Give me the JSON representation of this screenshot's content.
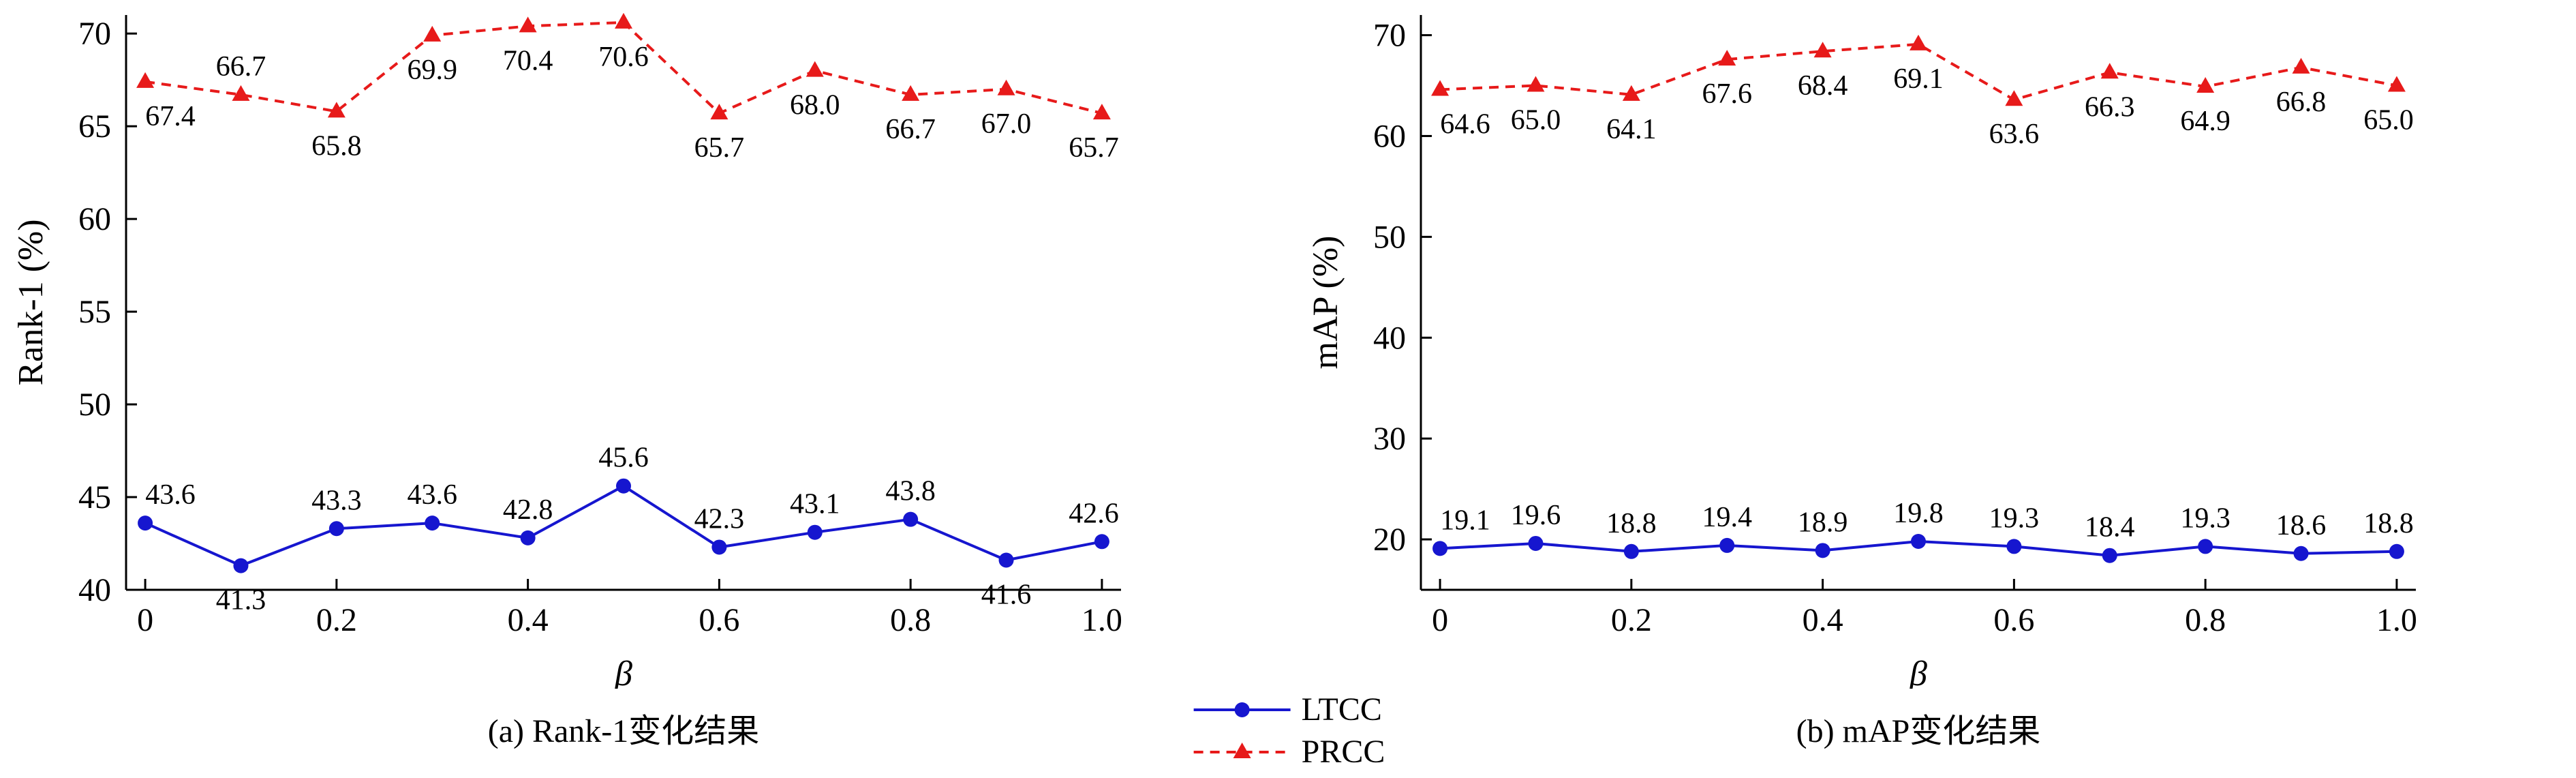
{
  "legend": {
    "position": "bottom-center",
    "items": [
      {
        "label": "LTCC",
        "color": "#1616cf",
        "marker": "circle",
        "line": "solid"
      },
      {
        "label": "PRCC",
        "color": "#e71a1a",
        "marker": "triangle",
        "line": "dashed"
      }
    ]
  },
  "chart_data": [
    {
      "type": "line",
      "caption": "(a) Rank-1变化结果",
      "xlabel": "β",
      "ylabel": "Rank-1 (%)",
      "x": [
        0,
        0.1,
        0.2,
        0.3,
        0.4,
        0.5,
        0.6,
        0.7,
        0.8,
        0.9,
        1.0
      ],
      "xlim": [
        -0.02,
        1.02
      ],
      "ylim": [
        40,
        71
      ],
      "xticks": [
        0,
        0.2,
        0.4,
        0.6,
        0.8,
        1.0
      ],
      "xtick_labels": [
        "0",
        "0.2",
        "0.4",
        "0.6",
        "0.8",
        "1.0"
      ],
      "yticks": [
        40,
        45,
        50,
        55,
        60,
        65,
        70
      ],
      "grid": false,
      "series": [
        {
          "name": "LTCC",
          "color": "#1616cf",
          "marker": "circle",
          "line": "solid",
          "values": [
            43.6,
            41.3,
            43.3,
            43.6,
            42.8,
            45.6,
            42.3,
            43.1,
            43.8,
            41.6,
            42.6
          ],
          "label_side": [
            "above",
            "below",
            "above",
            "above",
            "above",
            "above",
            "above",
            "above",
            "above",
            "below",
            "above"
          ]
        },
        {
          "name": "PRCC",
          "color": "#e71a1a",
          "marker": "triangle",
          "line": "dashed",
          "values": [
            67.4,
            66.7,
            65.8,
            69.9,
            70.4,
            70.6,
            65.7,
            68.0,
            66.7,
            67.0,
            65.7
          ],
          "label_side": [
            "below",
            "above",
            "below",
            "below",
            "below",
            "below",
            "below",
            "below",
            "below",
            "below",
            "below"
          ]
        }
      ]
    },
    {
      "type": "line",
      "caption": "(b) mAP变化结果",
      "xlabel": "β",
      "ylabel": "mAP (%)",
      "x": [
        0,
        0.1,
        0.2,
        0.3,
        0.4,
        0.5,
        0.6,
        0.7,
        0.8,
        0.9,
        1.0
      ],
      "xlim": [
        -0.02,
        1.02
      ],
      "ylim": [
        15,
        72
      ],
      "xticks": [
        0,
        0.2,
        0.4,
        0.6,
        0.8,
        1.0
      ],
      "xtick_labels": [
        "0",
        "0.2",
        "0.4",
        "0.6",
        "0.8",
        "1.0"
      ],
      "yticks": [
        20,
        30,
        40,
        50,
        60,
        70
      ],
      "grid": false,
      "series": [
        {
          "name": "LTCC",
          "color": "#1616cf",
          "marker": "circle",
          "line": "solid",
          "values": [
            19.1,
            19.6,
            18.8,
            19.4,
            18.9,
            19.8,
            19.3,
            18.4,
            19.3,
            18.6,
            18.8
          ],
          "label_side": [
            "above",
            "above",
            "above",
            "above",
            "above",
            "above",
            "above",
            "above",
            "above",
            "above",
            "above"
          ]
        },
        {
          "name": "PRCC",
          "color": "#e71a1a",
          "marker": "triangle",
          "line": "dashed",
          "values": [
            64.6,
            65.0,
            64.1,
            67.6,
            68.4,
            69.1,
            63.6,
            66.3,
            64.9,
            66.8,
            65.0
          ],
          "label_side": [
            "below",
            "below",
            "below",
            "below",
            "below",
            "below",
            "below",
            "below",
            "below",
            "below",
            "below"
          ]
        }
      ]
    }
  ]
}
